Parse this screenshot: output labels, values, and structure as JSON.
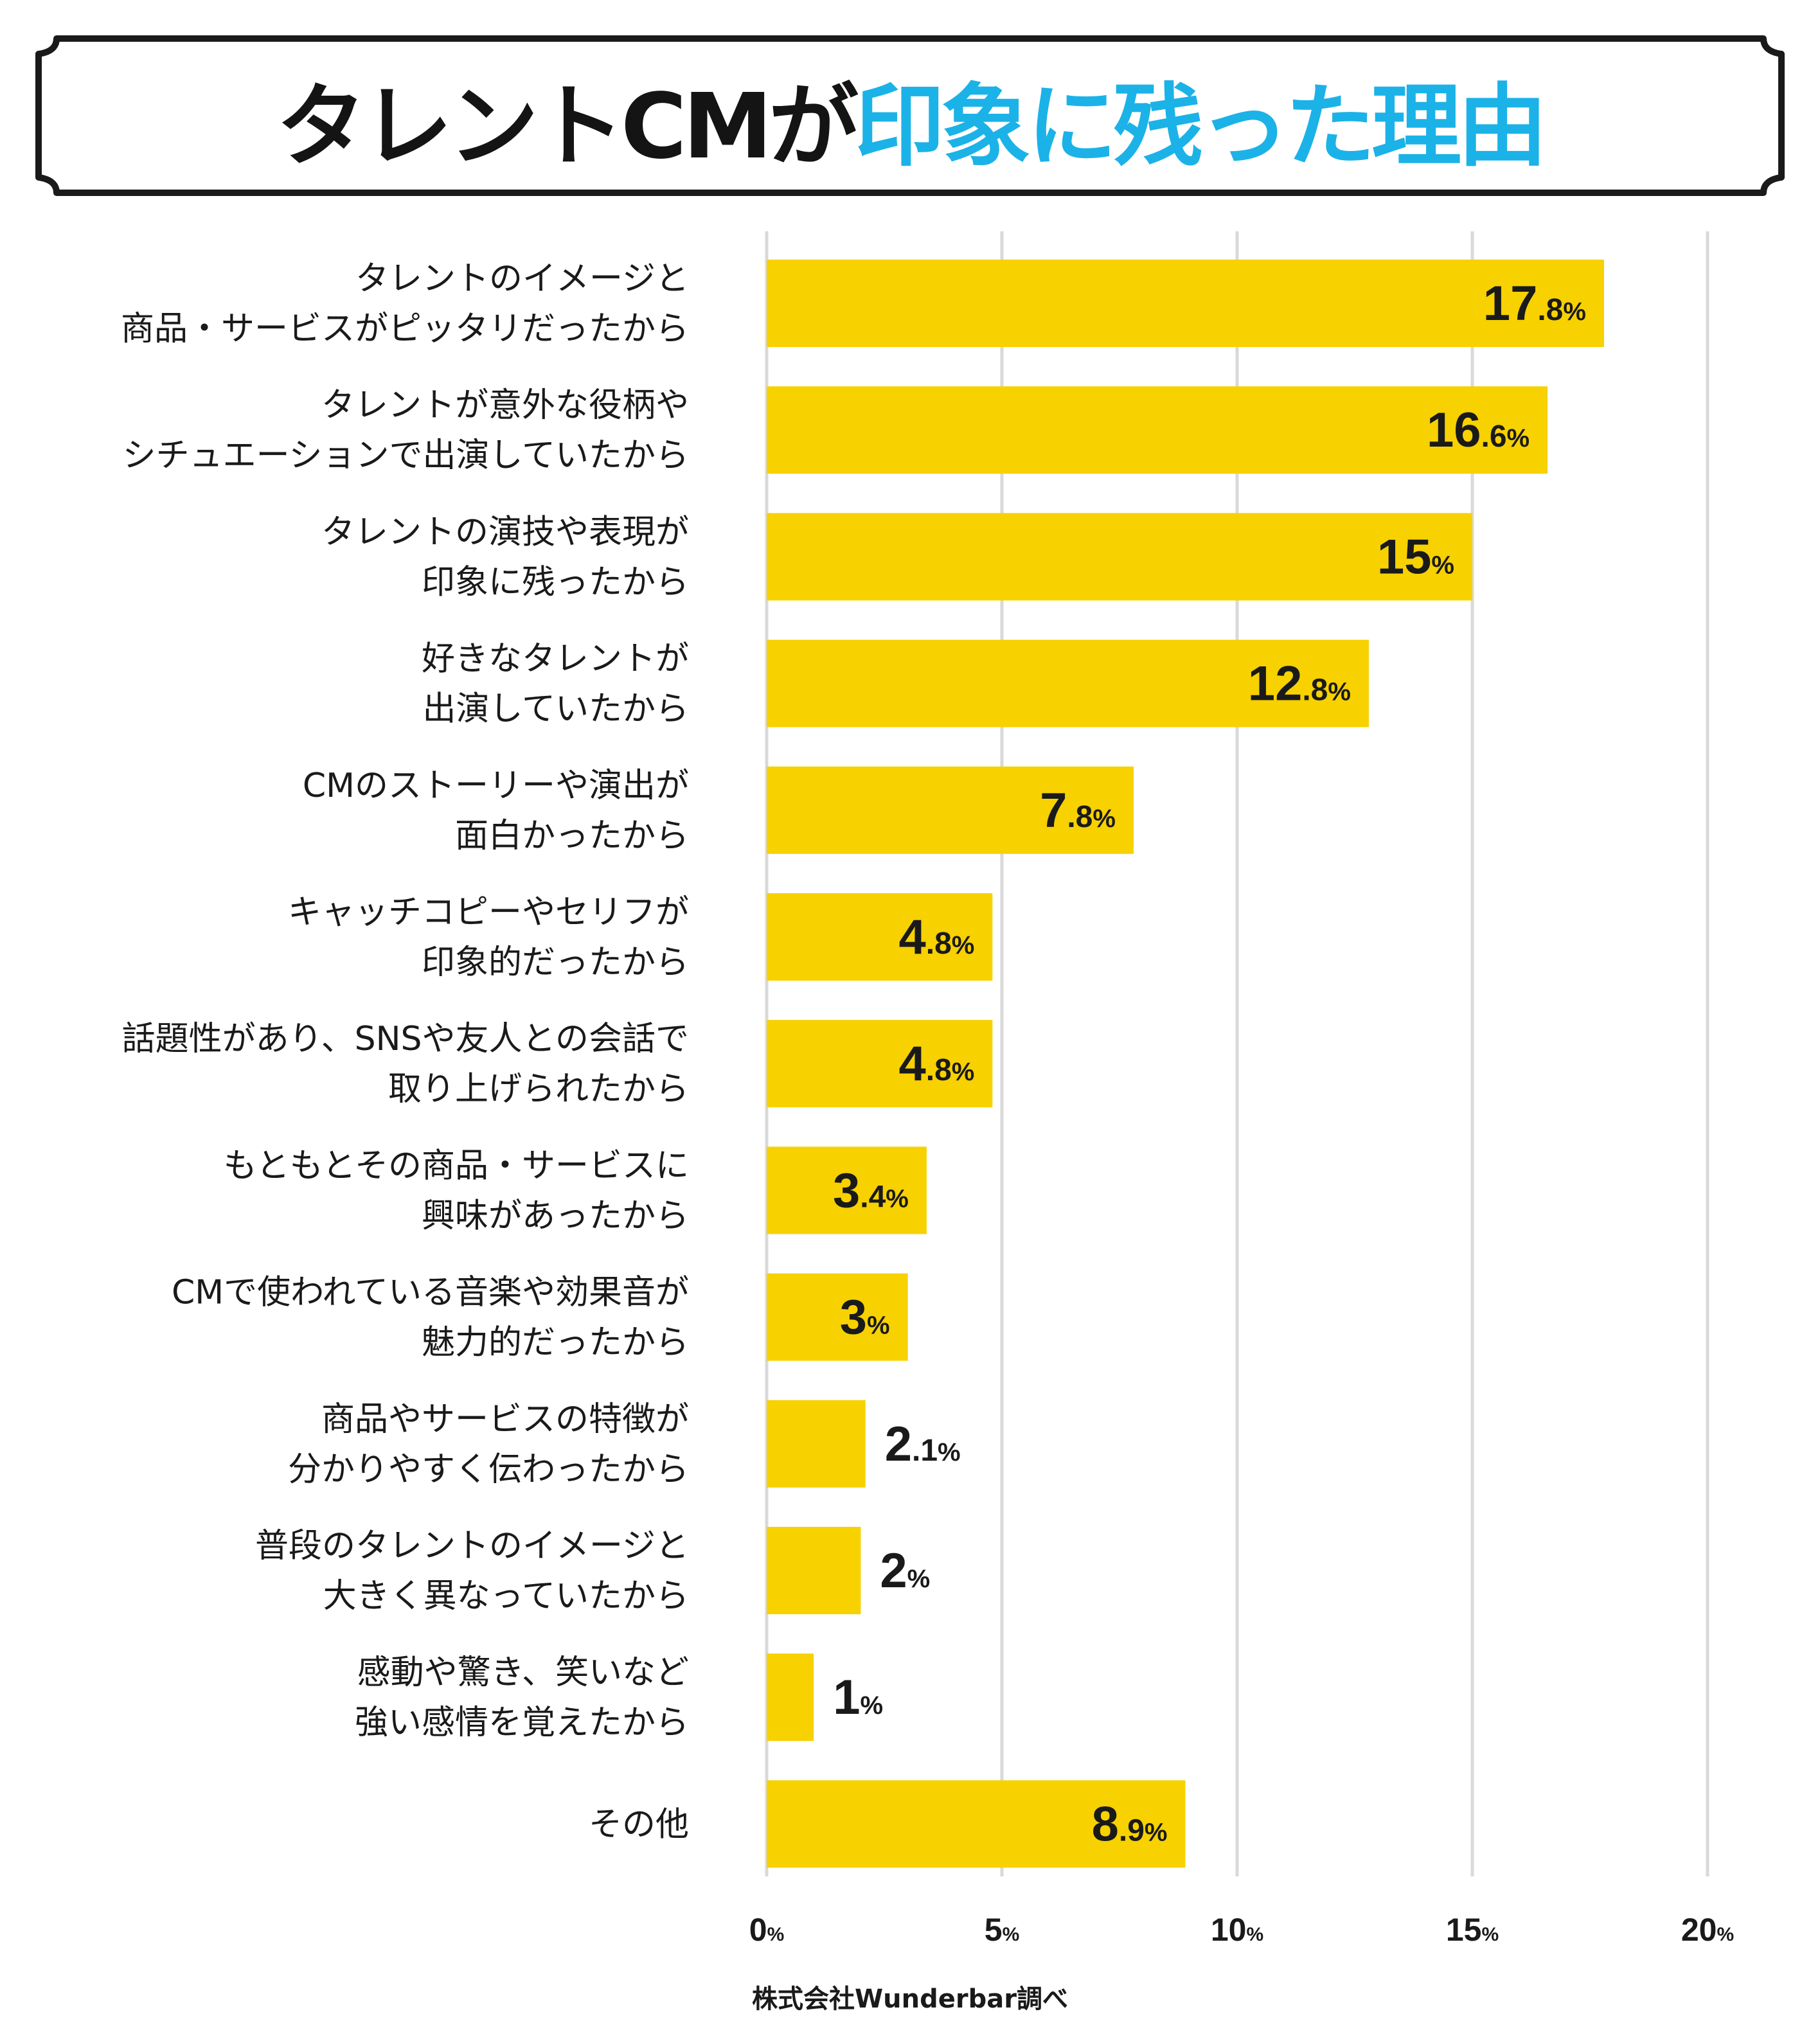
{
  "title": {
    "part1": "タレントCMが",
    "part2": "印象に残った理由"
  },
  "colors": {
    "bar": "#f7d100",
    "title_accent": "#1bb2e8",
    "text": "#1a1a1a",
    "grid": "#d9d9d9",
    "frame": "#1a1a1a"
  },
  "chart_data": {
    "type": "bar",
    "orientation": "horizontal",
    "title": "タレントCMが印象に残った理由",
    "categories": [
      [
        "タレントのイメージと",
        "商品・サービスがピッタリだったから"
      ],
      [
        "タレントが意外な役柄や",
        "シチュエーションで出演していたから"
      ],
      [
        "タレントの演技や表現が",
        "印象に残ったから"
      ],
      [
        "好きなタレントが",
        "出演していたから"
      ],
      [
        "CMのストーリーや演出が",
        "面白かったから"
      ],
      [
        "キャッチコピーやセリフが",
        "印象的だったから"
      ],
      [
        "話題性があり、SNSや友人との会話で",
        "取り上げられたから"
      ],
      [
        "もともとその商品・サービスに",
        "興味があったから"
      ],
      [
        "CMで使われている音楽や効果音が",
        "魅力的だったから"
      ],
      [
        "商品やサービスの特徴が",
        "分かりやすく伝わったから"
      ],
      [
        "普段のタレントのイメージと",
        "大きく異なっていたから"
      ],
      [
        "感動や驚き、笑いなど",
        "強い感情を覚えたから"
      ],
      [
        "その他"
      ]
    ],
    "values": [
      17.8,
      16.6,
      15,
      12.8,
      7.8,
      4.8,
      4.8,
      3.4,
      3,
      2.1,
      2,
      1,
      8.9
    ],
    "value_labels": [
      {
        "main": "17",
        "dec": ".8",
        "unit": "%"
      },
      {
        "main": "16",
        "dec": ".6",
        "unit": "%"
      },
      {
        "main": "15",
        "dec": "",
        "unit": "%"
      },
      {
        "main": "12",
        "dec": ".8",
        "unit": "%"
      },
      {
        "main": "7",
        "dec": ".8",
        "unit": "%"
      },
      {
        "main": "4",
        "dec": ".8",
        "unit": "%"
      },
      {
        "main": "4",
        "dec": ".8",
        "unit": "%"
      },
      {
        "main": "3",
        "dec": ".4",
        "unit": "%"
      },
      {
        "main": "3",
        "dec": "",
        "unit": "%"
      },
      {
        "main": "2",
        "dec": ".1",
        "unit": "%"
      },
      {
        "main": "2",
        "dec": "",
        "unit": "%"
      },
      {
        "main": "1",
        "dec": "",
        "unit": "%"
      },
      {
        "main": "8",
        "dec": ".9",
        "unit": "%"
      }
    ],
    "xlim": [
      0,
      20
    ],
    "xticks": [
      0,
      5,
      10,
      15,
      20
    ],
    "xtick_labels": [
      {
        "num": "0",
        "unit": "%"
      },
      {
        "num": "5",
        "unit": "%"
      },
      {
        "num": "10",
        "unit": "%"
      },
      {
        "num": "15",
        "unit": "%"
      },
      {
        "num": "20",
        "unit": "%"
      }
    ],
    "grid": true,
    "unit": "%"
  },
  "footnote": "株式会社Wunderbar調べ"
}
